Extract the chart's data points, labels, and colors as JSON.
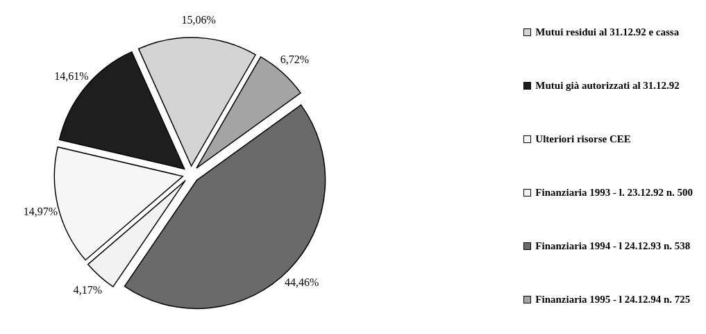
{
  "chart_data": {
    "type": "pie",
    "categories": [
      "Mutui residui al 31.12.92 e cassa",
      "Mutui già autorizzati al 31.12.92",
      "Ulteriori risorse CEE",
      "Finanziaria 1993 - l. 23.12.92 n. 500",
      "Finanziaria 1994 - l 24.12.93 n. 538",
      "Finanziaria 1995 - l 24.12.94 n. 725"
    ],
    "values": [
      15.06,
      14.61,
      14.97,
      4.17,
      44.46,
      6.72
    ],
    "value_labels": [
      "15,06%",
      "14,61%",
      "14,97%",
      "4,17%",
      "44,46%",
      "6,72%"
    ],
    "colors": [
      "#d4d4d4",
      "#1e1e1e",
      "#f6f6f6",
      "#f2f2f2",
      "#6a6a6a",
      "#a4a4a4"
    ],
    "legend": "right"
  }
}
